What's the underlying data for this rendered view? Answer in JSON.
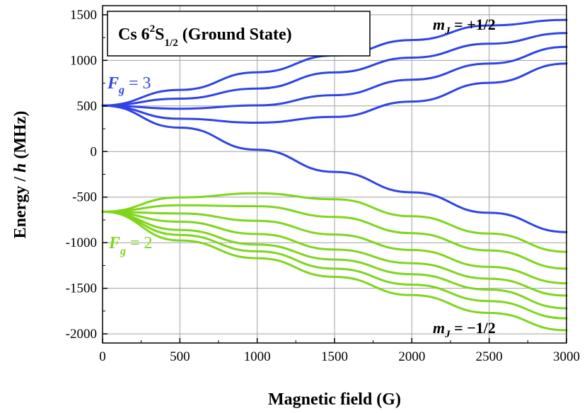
{
  "chart_data": {
    "type": "line",
    "title": {
      "prefix": "Cs 6",
      "sup": "2",
      "main": "S",
      "sub": "1/2",
      "suffix": " (Ground State)"
    },
    "xlabel": "Magnetic field (G)",
    "ylabel": {
      "pre": "Energy / ",
      "ital": "h",
      "post": " (MHz)"
    },
    "xlim": [
      0,
      3000
    ],
    "ylim": [
      -2100,
      1600
    ],
    "xticks": [
      "0",
      "500",
      "1000",
      "1500",
      "2000",
      "2500",
      "3000"
    ],
    "yticks": [
      "1500",
      "1000",
      "500",
      "0",
      "-500",
      "-1000",
      "-1500",
      "-2000"
    ],
    "grid": true,
    "annotations": {
      "fg3": {
        "letter": "F",
        "sub": "g",
        "rest": " = 3",
        "color": "#3044e6"
      },
      "fg2": {
        "letter": "F",
        "sub": "g",
        "rest": " = 2",
        "color": "#7ed61c"
      },
      "mj_plus": {
        "letter": "m",
        "sub": "J",
        "rest": " = +1/2"
      },
      "mj_minus": {
        "letter": "m",
        "sub": "J",
        "rest": " = −1/2"
      }
    },
    "series_colors": {
      "F3": "#3044e6",
      "F2": "#7ed61c"
    },
    "model": {
      "hyperfine_splitting_MHz": 9192.63177,
      "nuclear_spin_I": 3.5,
      "gJ": 2.00254032,
      "gI": -0.00039885395,
      "muB_MHz_per_G": 1.399624604
    },
    "series": [
      {
        "name": "",
        "group": "F3",
        "mF": 3,
        "x": [
          0,
          500,
          1000,
          1500,
          2000,
          2500,
          3000
        ],
        "y": [
          505,
          676,
          869,
          1054,
          1223,
          1383,
          1444
        ]
      },
      {
        "name": "",
        "group": "F3",
        "mF": 2,
        "x": [
          0,
          500,
          1000,
          1500,
          2000,
          2500,
          3000
        ],
        "y": [
          505,
          580,
          691,
          868,
          1030,
          1183,
          1300
        ]
      },
      {
        "name": "",
        "group": "F3",
        "mF": 1,
        "x": [
          0,
          500,
          1000,
          1500,
          2000,
          2500,
          3000
        ],
        "y": [
          505,
          470,
          506,
          618,
          788,
          965,
          1148
        ]
      },
      {
        "name": "",
        "group": "F3",
        "mF": 0,
        "x": [
          0,
          500,
          1000,
          1500,
          2000,
          2500,
          3000
        ],
        "y": [
          505,
          360,
          316,
          380,
          548,
          754,
          965
        ]
      },
      {
        "name": "",
        "group": "F3",
        "mF": -4,
        "x": [
          0,
          500,
          1000,
          1500,
          2000,
          2500,
          3000
        ],
        "y": [
          505,
          262,
          19,
          -224,
          -448,
          -672,
          -884
        ]
      },
      {
        "name": "",
        "group": "F2",
        "mF": -1,
        "x": [
          0,
          500,
          1000,
          1500,
          2000,
          2500,
          3000
        ],
        "y": [
          -660,
          -503,
          -458,
          -523,
          -710,
          -900,
          -1100
        ]
      },
      {
        "name": "",
        "group": "F2",
        "mF": -2,
        "x": [
          0,
          500,
          1000,
          1500,
          2000,
          2500,
          3000
        ],
        "y": [
          -660,
          -590,
          -600,
          -718,
          -895,
          -1085,
          -1285
        ]
      },
      {
        "name": "",
        "group": "F2",
        "mF": -3,
        "x": [
          0,
          500,
          1000,
          1500,
          2000,
          2500,
          3000
        ],
        "y": [
          -660,
          -680,
          -760,
          -910,
          -1080,
          -1265,
          -1445
        ]
      },
      {
        "name": "",
        "group": "F2",
        "mF": -4,
        "x": [
          0,
          500,
          1000,
          1500,
          2000,
          2500,
          3000
        ],
        "y": [
          -660,
          -770,
          -905,
          -1075,
          -1225,
          -1395,
          -1580
        ]
      },
      {
        "name": "",
        "group": "F2",
        "mF": -5,
        "x": [
          0,
          500,
          1000,
          1500,
          2000,
          2500,
          3000
        ],
        "y": [
          -660,
          -860,
          -1020,
          -1185,
          -1345,
          -1515,
          -1720
        ]
      },
      {
        "name": "",
        "group": "F2",
        "mF": -6,
        "x": [
          0,
          500,
          1000,
          1500,
          2000,
          2500,
          3000
        ],
        "y": [
          -660,
          -915,
          -1095,
          -1285,
          -1460,
          -1640,
          -1830
        ]
      },
      {
        "name": "",
        "group": "F2",
        "mF": -7,
        "x": [
          0,
          500,
          1000,
          1500,
          2000,
          2500,
          3000
        ],
        "y": [
          -660,
          -975,
          -1170,
          -1375,
          -1575,
          -1770,
          -1960
        ]
      }
    ]
  }
}
